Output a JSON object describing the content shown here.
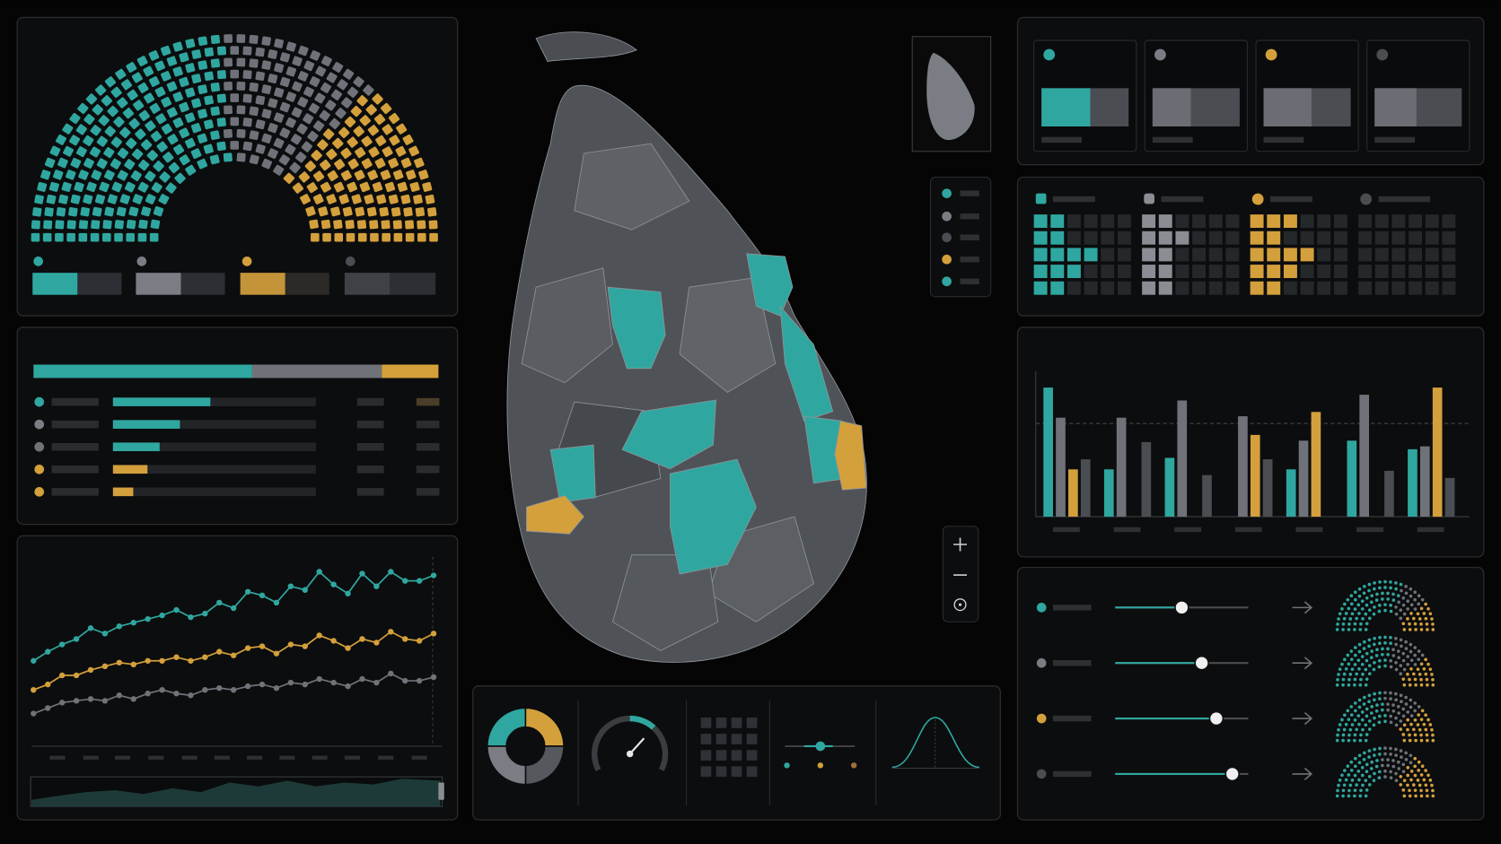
{
  "chart_data": [
    {
      "type": "parliament",
      "values": [
        185,
        95,
        105
      ],
      "colors": [
        "#2fa7a0",
        "#6f7379",
        "#d4a03c"
      ]
    },
    {
      "type": "stacked-bar",
      "series": [
        {
          "color": "#2fa7a0",
          "values": [
            54
          ]
        },
        {
          "color": "#6f7379",
          "values": [
            32
          ]
        },
        {
          "color": "#d4a03c",
          "values": [
            14
          ]
        }
      ],
      "xlim": [
        0,
        100
      ]
    },
    {
      "type": "hbar",
      "values": [
        48,
        33,
        23,
        17,
        10
      ],
      "colors": [
        "#2fa7a0",
        "#2fa7a0",
        "#2fa7a0",
        "#d4a03c",
        "#d4a03c"
      ],
      "xlim": [
        0,
        100
      ]
    },
    {
      "type": "line",
      "categories": [
        null,
        null,
        null,
        null,
        null,
        null,
        null,
        null,
        null,
        null,
        null,
        null,
        null,
        null,
        null,
        null,
        null,
        null,
        null,
        null,
        null,
        null,
        null,
        null,
        null,
        null,
        null,
        null,
        null
      ],
      "series": [
        {
          "color": "#2fa7a0",
          "values": [
            47,
            52,
            56,
            59,
            65,
            62,
            66,
            68,
            70,
            72,
            75,
            71,
            73,
            79,
            76,
            85,
            83,
            79,
            88,
            86,
            96,
            89,
            84,
            95,
            88,
            96,
            91,
            91,
            94
          ]
        },
        {
          "color": "#d4a03c",
          "values": [
            31,
            34,
            39,
            39,
            42,
            44,
            46,
            45,
            47,
            47,
            49,
            47,
            49,
            52,
            50,
            54,
            55,
            51,
            56,
            55,
            61,
            58,
            54,
            59,
            57,
            63,
            59,
            58,
            62
          ]
        },
        {
          "color": "#6f7379",
          "values": [
            18,
            21,
            24,
            25,
            26,
            25,
            28,
            26,
            29,
            31,
            29,
            28,
            31,
            32,
            31,
            33,
            34,
            32,
            35,
            34,
            37,
            35,
            33,
            37,
            35,
            40,
            36,
            36,
            38
          ]
        }
      ],
      "ylim": [
        0,
        100
      ]
    },
    {
      "type": "bar",
      "categories": [
        null,
        null,
        null,
        null,
        null,
        null,
        null
      ],
      "series": [
        {
          "color": "#2fa7a0",
          "values": [
            90,
            33,
            41,
            null,
            33,
            53,
            47
          ]
        },
        {
          "color": "#6f7379",
          "values": [
            69,
            69,
            81,
            70,
            53,
            85,
            49
          ]
        },
        {
          "color": "#d4a03c",
          "values": [
            33,
            null,
            null,
            57,
            73,
            null,
            90
          ]
        },
        {
          "color": "#4a4d52",
          "values": [
            40,
            52,
            29,
            40,
            null,
            32,
            27
          ]
        }
      ],
      "ylim": [
        0,
        100
      ],
      "reference_line": 65
    },
    {
      "type": "split-bar",
      "values": [
        56,
        44,
        55,
        48
      ],
      "colors": [
        "#2fa7a0",
        "#6f7379",
        "#6f7379",
        "#55595e"
      ],
      "xlim": [
        0,
        100
      ]
    },
    {
      "type": "waffle",
      "columns": 6,
      "series": [
        {
          "color": "#2fa7a0",
          "values": [
            2,
            2,
            4,
            3,
            2
          ]
        },
        {
          "color": "#8a8e94",
          "values": [
            2,
            3,
            2,
            2,
            2
          ]
        },
        {
          "color": "#d4a03c",
          "values": [
            3,
            2,
            4,
            3,
            2
          ]
        },
        {
          "color": "#4a4d52",
          "values": [
            0,
            0,
            0,
            0,
            0
          ]
        }
      ]
    },
    {
      "type": "slider",
      "values": [
        50,
        65,
        76,
        88
      ],
      "color": "#2fa7a0",
      "xlim": [
        0,
        100
      ]
    },
    {
      "type": "donut",
      "values": [
        25,
        25,
        25,
        25
      ],
      "colors": [
        "#2fa7a0",
        "#d4a03c",
        "#55595e",
        "#7a7e84"
      ]
    },
    {
      "type": "gauge",
      "value": 68,
      "ylim": [
        0,
        100
      ],
      "color": "#2fa7a0"
    }
  ]
}
